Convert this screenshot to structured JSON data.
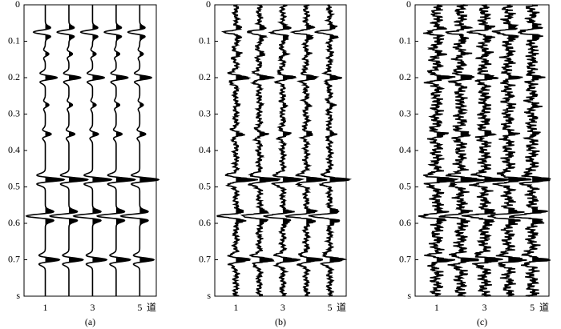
{
  "chart_data": [
    {
      "type": "wiggle",
      "caption": "(a)",
      "traces": [
        1,
        2,
        3,
        4,
        5
      ],
      "xlim": [
        0.1,
        5.7
      ],
      "xticks": [
        1,
        3,
        5
      ],
      "x_label": "道",
      "ylim": [
        0,
        0.8
      ],
      "yticks": [
        0,
        0.1,
        0.2,
        0.3,
        0.4,
        0.5,
        0.6,
        0.7,
        {
          "value": 0.8,
          "label": "s"
        }
      ],
      "events": {
        "times": [
          0.075,
          0.135,
          0.2,
          0.275,
          0.355,
          0.48,
          0.58,
          0.7
        ],
        "amplitudes": [
          -0.5,
          0.15,
          0.5,
          0.15,
          0.25,
          0.8,
          -0.8,
          0.6
        ]
      },
      "noise_level": 0,
      "color": "#000000"
    },
    {
      "type": "wiggle",
      "caption": "(b)",
      "traces": [
        1,
        2,
        3,
        4,
        5
      ],
      "xlim": [
        0.1,
        5.7
      ],
      "xticks": [
        1,
        3,
        5
      ],
      "x_label": "道",
      "ylim": [
        0,
        0.8
      ],
      "yticks": [
        0,
        0.1,
        0.2,
        0.3,
        0.4,
        0.5,
        0.6,
        0.7,
        {
          "value": 0.8,
          "label": "s"
        }
      ],
      "events": {
        "times": [
          0.075,
          0.135,
          0.2,
          0.275,
          0.355,
          0.48,
          0.58,
          0.7
        ],
        "amplitudes": [
          -0.5,
          0.15,
          0.5,
          0.15,
          0.25,
          0.8,
          -0.8,
          0.6
        ]
      },
      "noise_level": 0.12,
      "color": "#000000"
    },
    {
      "type": "wiggle",
      "caption": "(c)",
      "traces": [
        1,
        2,
        3,
        4,
        5
      ],
      "xlim": [
        0.1,
        5.7
      ],
      "xticks": [
        1,
        3,
        5
      ],
      "x_label": "道",
      "ylim": [
        0,
        0.8
      ],
      "yticks": [
        0,
        0.1,
        0.2,
        0.3,
        0.4,
        0.5,
        0.6,
        0.7,
        {
          "value": 0.8,
          "label": "s"
        }
      ],
      "events": {
        "times": [
          0.075,
          0.135,
          0.2,
          0.275,
          0.355,
          0.48,
          0.58,
          0.7
        ],
        "amplitudes": [
          -0.5,
          0.15,
          0.5,
          0.15,
          0.25,
          0.8,
          -0.8,
          0.6
        ]
      },
      "noise_level": 0.25,
      "color": "#000000"
    }
  ]
}
